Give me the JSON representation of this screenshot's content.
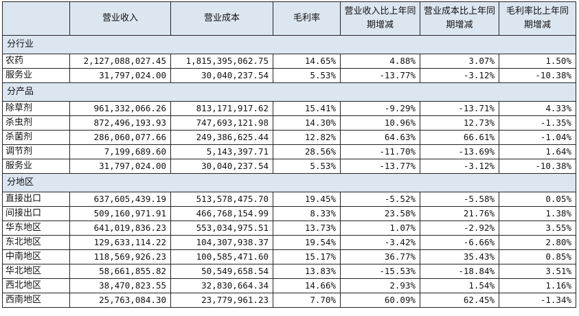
{
  "header": {
    "columns": [
      "营业收入",
      "营业成本",
      "毛利率",
      "营业收入比上年同期增减",
      "营业成本比上年同期增减",
      "毛利率比上年同期增减"
    ]
  },
  "sections": [
    {
      "title": "分行业",
      "rows": [
        {
          "label": "农药",
          "cells": [
            "2,127,088,027.45",
            "1,815,395,062.75",
            "14.65%",
            "4.88%",
            "3.07%",
            "1.50%"
          ]
        },
        {
          "label": "服务业",
          "cells": [
            "31,797,024.00",
            "30,040,237.54",
            "5.53%",
            "-13.77%",
            "-3.12%",
            "-10.38%"
          ]
        }
      ]
    },
    {
      "title": "分产品",
      "rows": [
        {
          "label": "除草剂",
          "cells": [
            "961,332,066.26",
            "813,171,917.62",
            "15.41%",
            "-9.29%",
            "-13.71%",
            "4.33%"
          ]
        },
        {
          "label": "杀虫剂",
          "cells": [
            "872,496,193.93",
            "747,693,121.98",
            "14.30%",
            "10.96%",
            "12.73%",
            "-1.35%"
          ]
        },
        {
          "label": "杀菌剂",
          "cells": [
            "286,060,077.66",
            "249,386,625.44",
            "12.82%",
            "64.63%",
            "66.61%",
            "-1.04%"
          ]
        },
        {
          "label": "调节剂",
          "cells": [
            "7,199,689.60",
            "5,143,397.71",
            "28.56%",
            "-11.70%",
            "-13.69%",
            "1.64%"
          ]
        },
        {
          "label": "服务业",
          "cells": [
            "31,797,024.00",
            "30,040,237.54",
            "5.53%",
            "-13.77%",
            "-3.12%",
            "-10.38%"
          ]
        }
      ]
    },
    {
      "title": "分地区",
      "rows": [
        {
          "label": "直接出口",
          "cells": [
            "637,605,439.19",
            "513,578,475.70",
            "19.45%",
            "-5.52%",
            "-5.58%",
            "0.05%"
          ]
        },
        {
          "label": "间接出口",
          "cells": [
            "509,160,971.91",
            "466,768,154.99",
            "8.33%",
            "23.58%",
            "21.76%",
            "1.38%"
          ]
        },
        {
          "label": "华东地区",
          "cells": [
            "641,019,836.23",
            "553,034,975.51",
            "13.73%",
            "1.07%",
            "-2.92%",
            "3.55%"
          ]
        },
        {
          "label": "东北地区",
          "cells": [
            "129,633,114.22",
            "104,307,938.37",
            "19.54%",
            "-3.42%",
            "-6.66%",
            "2.80%"
          ]
        },
        {
          "label": "中南地区",
          "cells": [
            "118,569,926.23",
            "100,585,471.60",
            "15.17%",
            "36.77%",
            "35.43%",
            "0.85%"
          ]
        },
        {
          "label": "华北地区",
          "cells": [
            "58,661,855.82",
            "50,549,658.54",
            "13.83%",
            "-15.53%",
            "-18.84%",
            "3.51%"
          ]
        },
        {
          "label": "西北地区",
          "cells": [
            "38,470,823.55",
            "32,830,664.34",
            "14.66%",
            "2.93%",
            "1.54%",
            "1.16%"
          ]
        },
        {
          "label": "西南地区",
          "cells": [
            "25,763,084.30",
            "23,779,961.23",
            "7.70%",
            "60.09%",
            "62.45%",
            "-1.34%"
          ]
        }
      ]
    }
  ]
}
